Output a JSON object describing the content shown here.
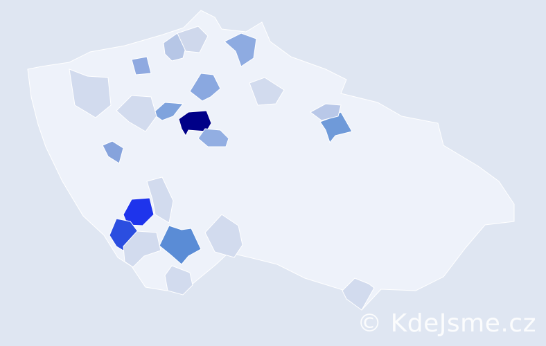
{
  "watermark": "© KdeJsme.cz",
  "colors": {
    "background": "#dfe6f2",
    "base_region": "#eef2fa",
    "border": "#ffffff"
  },
  "regions": [
    {
      "id": "prague",
      "color": "#000088"
    },
    {
      "id": "south-west-1",
      "color": "#1e34ec"
    },
    {
      "id": "south-west-2",
      "color": "#2b4ee0"
    },
    {
      "id": "south-1",
      "color": "#5a8cd6"
    },
    {
      "id": "north-east-1",
      "color": "#6f9ad9"
    },
    {
      "id": "central-west",
      "color": "#7fa3dd"
    },
    {
      "id": "central-south",
      "color": "#92aee2"
    },
    {
      "id": "north-1",
      "color": "#8aa8e0"
    },
    {
      "id": "north-2",
      "color": "#8eabe1"
    },
    {
      "id": "north-west-1",
      "color": "#8fa9e0"
    },
    {
      "id": "west-1",
      "color": "#86a3dc"
    },
    {
      "id": "north-west-2",
      "color": "#b6c6e6"
    },
    {
      "id": "north-west-3",
      "color": "#cfd8ec"
    },
    {
      "id": "west-2",
      "color": "#d2dbee"
    },
    {
      "id": "west-3",
      "color": "#d2dbee"
    },
    {
      "id": "north-3",
      "color": "#d2dbee"
    },
    {
      "id": "north-east-2",
      "color": "#b9c8e8"
    },
    {
      "id": "south-2",
      "color": "#d2dbee"
    },
    {
      "id": "south-3",
      "color": "#d2dbee"
    },
    {
      "id": "south-4",
      "color": "#d2dbee"
    },
    {
      "id": "south-5",
      "color": "#d2dbee"
    },
    {
      "id": "south-east-1",
      "color": "#d2dbee"
    }
  ]
}
